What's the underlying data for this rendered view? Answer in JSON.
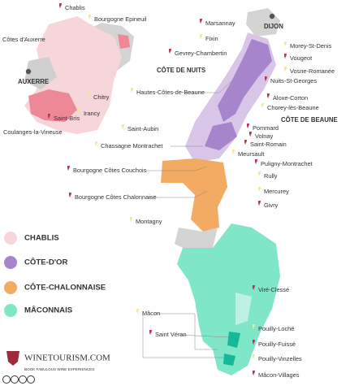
{
  "map": {
    "chablis_places": [
      "Chablis",
      "Bourgogne Epineuil",
      "Côtes d'Auxerre",
      "Chitry",
      "Saint-Bris",
      "Irancy",
      "Coulanges-la-Vineuse"
    ],
    "cities": [
      "AUXERRE",
      "DIJON"
    ],
    "subregions": [
      "CÔTE DE NUITS",
      "CÔTE DE BEAUNE"
    ],
    "cote_dor_places": [
      "Marsannay",
      "Fixin",
      "Gevrey-Chambertin",
      "Morey-St-Denis",
      "Vougeot",
      "Vosne-Romanée",
      "Nuits-St-Georges",
      "Hautes-Côtes-de-Beaune",
      "Aloxe-Corton",
      "Chorey-lès-Beaune",
      "Pommard",
      "Saint-Aubin",
      "Volnay",
      "Chassagne Montrachet",
      "Saint-Romain",
      "Meursault",
      "Puligny-Montrachet"
    ],
    "chalonnaise_places": [
      "Bourgogne Côtes Couchois",
      "Rully",
      "Bourgogne Côtes Chalonnaise",
      "Mercurey",
      "Givry",
      "Montagny"
    ],
    "maconnais_places": [
      "Viré-Clessé",
      "Mâcon",
      "Saint Véran",
      "Pouilly-Loché",
      "Pouilly-Fuissé",
      "Pouilly-Vinzelles",
      "Mâcon-Villages"
    ],
    "legend": [
      "CHABLIS",
      "CÔTE-D'OR",
      "CÔTE-CHALONNAISE",
      "MÂCONNAIS"
    ]
  },
  "logo": {
    "name": "WINETOURISM.COM",
    "tagline": "BOOK FABULOUS WINE EXPERIENCES"
  }
}
